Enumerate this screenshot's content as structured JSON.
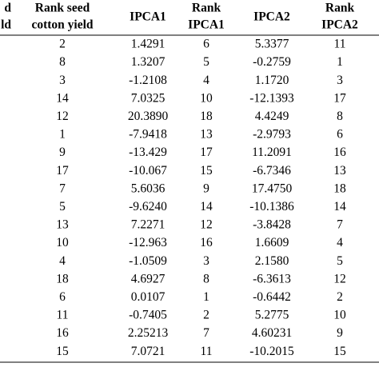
{
  "table": {
    "headers": [
      [
        "d",
        "ld"
      ],
      [
        "Rank seed",
        "cotton yield"
      ],
      [
        "IPCA1"
      ],
      [
        "Rank",
        "IPCA1"
      ],
      [
        "IPCA2"
      ],
      [
        "Rank",
        "IPCA2"
      ]
    ],
    "rows": [
      [
        "2",
        "1.4291",
        "6",
        "5.3377",
        "11"
      ],
      [
        "8",
        "1.3207",
        "5",
        "-0.2759",
        "1"
      ],
      [
        "3",
        "-1.2108",
        "4",
        "1.1720",
        "3"
      ],
      [
        "14",
        "7.0325",
        "10",
        "-12.1393",
        "17"
      ],
      [
        "12",
        "20.3890",
        "18",
        "4.4249",
        "8"
      ],
      [
        "1",
        "-7.9418",
        "13",
        "-2.9793",
        "6"
      ],
      [
        "9",
        "-13.429",
        "17",
        "11.2091",
        "16"
      ],
      [
        "17",
        "-10.067",
        "15",
        "-6.7346",
        "13"
      ],
      [
        "7",
        "5.6036",
        "9",
        "17.4750",
        "18"
      ],
      [
        "5",
        "-9.6240",
        "14",
        "-10.1386",
        "14"
      ],
      [
        "13",
        "7.2271",
        "12",
        "-3.8428",
        "7"
      ],
      [
        "10",
        "-12.963",
        "16",
        "1.6609",
        "4"
      ],
      [
        "4",
        "-1.0509",
        "3",
        "2.1580",
        "5"
      ],
      [
        "18",
        "4.6927",
        "8",
        "-6.3613",
        "12"
      ],
      [
        "6",
        "0.0107",
        "1",
        "-0.6442",
        "2"
      ],
      [
        "11",
        "-0.7405",
        "2",
        "5.2775",
        "10"
      ],
      [
        "16",
        "2.25213",
        "7",
        "4.60231",
        "9"
      ],
      [
        "15",
        "7.0721",
        "11",
        "-10.2015",
        "15"
      ]
    ]
  }
}
